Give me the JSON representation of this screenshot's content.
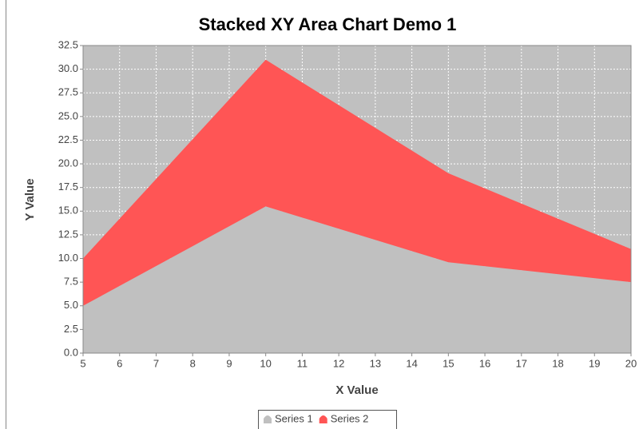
{
  "chart_data": {
    "type": "area",
    "stacked": true,
    "title": "Stacked XY Area Chart Demo 1",
    "x_label": "X Value",
    "y_label": "Y Value",
    "x": [
      5,
      10,
      15,
      20
    ],
    "series": [
      {
        "name": "Series 1",
        "color": "#c0c0c0",
        "values": [
          5.0,
          15.5,
          9.6,
          7.5
        ]
      },
      {
        "name": "Series 2",
        "color": "#ff5555",
        "values": [
          5.0,
          15.5,
          9.4,
          3.5
        ]
      }
    ],
    "xlim": [
      5,
      20
    ],
    "xticks": [
      5,
      6,
      7,
      8,
      9,
      10,
      11,
      12,
      13,
      14,
      15,
      16,
      17,
      18,
      19,
      20
    ],
    "ylim": [
      0,
      32.5
    ],
    "yticks": [
      {
        "value": 0,
        "label": "0.0"
      },
      2.5,
      {
        "value": 5,
        "label": "5.0"
      },
      7.5,
      {
        "value": 10,
        "label": "10.0"
      },
      12.5,
      {
        "value": 15,
        "label": "15.0"
      },
      17.5,
      {
        "value": 20,
        "label": "20.0"
      },
      22.5,
      {
        "value": 25,
        "label": "25.0"
      },
      27.5,
      {
        "value": 30,
        "label": "30.0"
      },
      32.5
    ],
    "grid": true,
    "legend": "bottom",
    "plot_background": "#c0c0c0"
  }
}
